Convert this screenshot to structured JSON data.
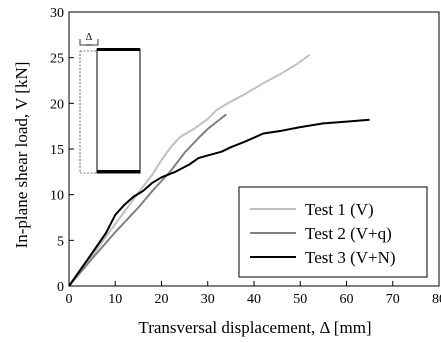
{
  "chart_data": {
    "type": "line",
    "xlabel": "Transversal displacement, Δ [mm]",
    "ylabel": "In-plane shear load, V [kN]",
    "xlim": [
      0,
      80
    ],
    "ylim": [
      0,
      30
    ],
    "xticks": [
      0,
      10,
      20,
      30,
      40,
      50,
      60,
      70,
      80
    ],
    "yticks": [
      0,
      5,
      10,
      15,
      20,
      25,
      30
    ],
    "grid": false,
    "legend_position": "bottom-right",
    "inset_label": "Δ",
    "series": [
      {
        "name": "Test 1 (V)",
        "color": "#c0c0c0",
        "points": [
          [
            0,
            0
          ],
          [
            5,
            3.3
          ],
          [
            10,
            6.8
          ],
          [
            15,
            10.2
          ],
          [
            18,
            12.2
          ],
          [
            20,
            13.8
          ],
          [
            22,
            15.2
          ],
          [
            24,
            16.3
          ],
          [
            27,
            17.2
          ],
          [
            30,
            18.3
          ],
          [
            32,
            19.3
          ],
          [
            35,
            20.2
          ],
          [
            38,
            21.0
          ],
          [
            42,
            22.2
          ],
          [
            46,
            23.3
          ],
          [
            49,
            24.2
          ],
          [
            52,
            25.3
          ]
        ]
      },
      {
        "name": "Test 2 (V+q)",
        "color": "#808080",
        "points": [
          [
            0,
            0
          ],
          [
            5,
            3.0
          ],
          [
            10,
            5.9
          ],
          [
            15,
            8.6
          ],
          [
            18,
            10.4
          ],
          [
            20,
            11.5
          ],
          [
            22,
            12.6
          ],
          [
            25,
            14.6
          ],
          [
            28,
            16.2
          ],
          [
            30,
            17.2
          ],
          [
            32,
            18.0
          ],
          [
            34,
            18.8
          ]
        ]
      },
      {
        "name": "Test 3 (V+N)",
        "color": "#000000",
        "points": [
          [
            0,
            0
          ],
          [
            5,
            3.6
          ],
          [
            8,
            5.8
          ],
          [
            10,
            7.8
          ],
          [
            12,
            8.9
          ],
          [
            14,
            9.8
          ],
          [
            16,
            10.4
          ],
          [
            18,
            11.3
          ],
          [
            20,
            11.9
          ],
          [
            23,
            12.5
          ],
          [
            26,
            13.3
          ],
          [
            28,
            14.0
          ],
          [
            30,
            14.3
          ],
          [
            33,
            14.7
          ],
          [
            35,
            15.2
          ],
          [
            38,
            15.8
          ],
          [
            42,
            16.7
          ],
          [
            46,
            17.0
          ],
          [
            50,
            17.4
          ],
          [
            55,
            17.8
          ],
          [
            60,
            18.0
          ],
          [
            65,
            18.2
          ]
        ]
      }
    ]
  }
}
